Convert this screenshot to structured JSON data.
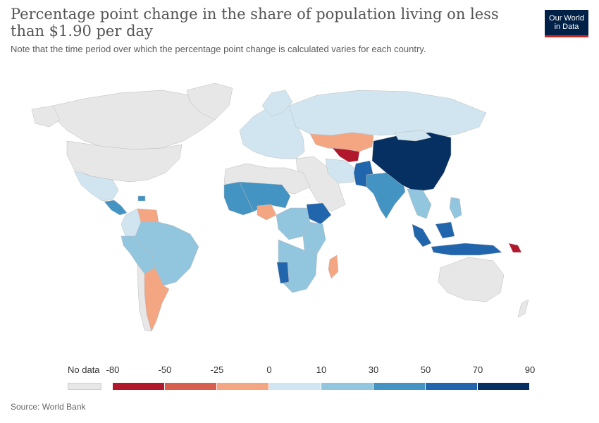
{
  "header": {
    "title": "Percentage point change in the share of population living on less than $1.90 per day",
    "subtitle": "Note that the time period over which the percentage point change is calculated varies for each country."
  },
  "logo": {
    "line1": "Our World",
    "line2": "in Data"
  },
  "legend": {
    "no_data_label": "No data",
    "ticks": [
      "-80",
      "-50",
      "-25",
      "0",
      "10",
      "30",
      "50",
      "70",
      "90"
    ],
    "bins": [
      {
        "from": -80,
        "to": -50,
        "color": "#b2182b"
      },
      {
        "from": -50,
        "to": -25,
        "color": "#d6604d"
      },
      {
        "from": -25,
        "to": 0,
        "color": "#f4a582"
      },
      {
        "from": 0,
        "to": 10,
        "color": "#d1e5f0"
      },
      {
        "from": 10,
        "to": 30,
        "color": "#92c5de"
      },
      {
        "from": 30,
        "to": 50,
        "color": "#4393c3"
      },
      {
        "from": 50,
        "to": 70,
        "color": "#2166ac"
      },
      {
        "from": 70,
        "to": 90,
        "color": "#053061"
      }
    ],
    "no_data_color": "#e7e7e7"
  },
  "footer": {
    "source": "Source: World Bank"
  },
  "map_regions": {
    "canada": "no-data",
    "usa": "no-data",
    "greenland": "no-data",
    "mexico": "0-10",
    "central_america": "30-50",
    "venezuela": "-25-0",
    "colombia": "0-10",
    "brazil": "10-30",
    "peru_bolivia": "10-30",
    "argentina": "-25-0",
    "chile": "no-data",
    "west_africa": "30-50",
    "nigeria": "-25-0",
    "sahel": "30-50",
    "north_africa": "no-data",
    "central_africa": "10-30",
    "ethiopia": "50-70",
    "east_africa": "10-30",
    "southern_africa": "10-30",
    "namibia": "50-70",
    "madagascar": "-25-0",
    "europe": "0-10",
    "russia": "0-10",
    "kazakhstan": "-25-0",
    "uzbekistan": "-80--50",
    "middle_east": "no-data",
    "iran": "0-10",
    "india": "30-50",
    "pakistan": "50-70",
    "china": "70-90",
    "southeast_asia": "10-30",
    "indonesia": "50-70",
    "australia": "no-data",
    "papua": "-80--50"
  }
}
